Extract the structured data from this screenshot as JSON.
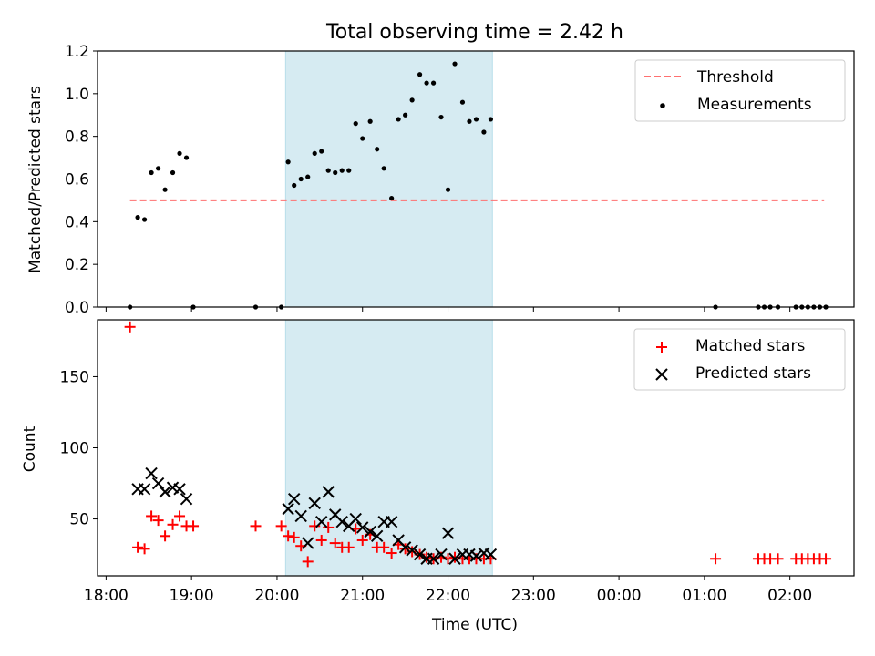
{
  "chart_data": [
    {
      "type": "scatter",
      "title": "Total observing time = 2.42 h",
      "xlabel": "",
      "ylabel": "Matched/Predicted stars",
      "x_unit": "hours since 18:00 UTC",
      "xlim": [
        17.9,
        26.75
      ],
      "ylim": [
        0,
        1.2
      ],
      "x_tick_labels": [
        "18:00",
        "19:00",
        "20:00",
        "21:00",
        "22:00",
        "23:00",
        "00:00",
        "01:00",
        "02:00"
      ],
      "y_ticks": [
        0.0,
        0.2,
        0.4,
        0.6,
        0.8,
        1.0,
        1.2
      ],
      "y_tick_labels": [
        "0.0",
        "0.2",
        "0.4",
        "0.6",
        "0.8",
        "1.0",
        "1.2"
      ],
      "shaded_span": [
        20.1,
        22.52
      ],
      "legend": {
        "position": "top-right",
        "entries": [
          "Threshold",
          "Measurements"
        ]
      },
      "threshold": {
        "name": "Threshold",
        "y": 0.5,
        "x_range": [
          18.28,
          26.4
        ],
        "color": "#ff7070"
      },
      "series": [
        {
          "name": "Measurements",
          "color": "#000000",
          "x": [
            18.28,
            18.37,
            18.45,
            18.53,
            18.61,
            18.69,
            18.78,
            18.86,
            18.94,
            19.02,
            19.75,
            20.05,
            20.13,
            20.2,
            20.28,
            20.36,
            20.44,
            20.52,
            20.6,
            20.68,
            20.76,
            20.84,
            20.92,
            21.0,
            21.09,
            21.17,
            21.25,
            21.34,
            21.42,
            21.5,
            21.58,
            21.67,
            21.75,
            21.83,
            21.92,
            22.0,
            22.08,
            22.17,
            22.25,
            22.33,
            22.42,
            22.5,
            25.13,
            25.63,
            25.7,
            25.77,
            25.86,
            26.07,
            26.14,
            26.21,
            26.28,
            26.35,
            26.42
          ],
          "y": [
            0.0,
            0.42,
            0.41,
            0.63,
            0.65,
            0.55,
            0.63,
            0.72,
            0.7,
            0.0,
            0.0,
            0.0,
            0.68,
            0.57,
            0.6,
            0.61,
            0.72,
            0.73,
            0.64,
            0.63,
            0.64,
            0.64,
            0.86,
            0.79,
            0.87,
            0.74,
            0.65,
            0.51,
            0.88,
            0.9,
            0.97,
            1.09,
            1.05,
            1.05,
            0.89,
            0.55,
            1.14,
            0.96,
            0.87,
            0.88,
            0.82,
            0.88,
            0.0,
            0.0,
            0.0,
            0.0,
            0.0,
            0.0,
            0.0,
            0.0,
            0.0,
            0.0,
            0.0
          ]
        }
      ]
    },
    {
      "type": "scatter",
      "title": "",
      "xlabel": "Time (UTC)",
      "ylabel": "Count",
      "x_unit": "hours since 18:00 UTC",
      "xlim": [
        17.9,
        26.75
      ],
      "ylim": [
        10,
        190
      ],
      "x_tick_labels": [
        "18:00",
        "19:00",
        "20:00",
        "21:00",
        "22:00",
        "23:00",
        "00:00",
        "01:00",
        "02:00"
      ],
      "y_ticks": [
        50,
        100,
        150
      ],
      "y_tick_labels": [
        "50",
        "100",
        "150"
      ],
      "shaded_span": [
        20.1,
        22.52
      ],
      "legend": {
        "position": "top-right",
        "entries": [
          "Matched stars",
          "Predicted stars"
        ]
      },
      "series": [
        {
          "name": "Matched stars",
          "color": "#ff0000",
          "x": [
            18.28,
            18.37,
            18.45,
            18.53,
            18.61,
            18.69,
            18.78,
            18.86,
            18.94,
            19.02,
            19.75,
            20.05,
            20.13,
            20.2,
            20.28,
            20.36,
            20.44,
            20.52,
            20.6,
            20.68,
            20.76,
            20.84,
            20.92,
            21.0,
            21.09,
            21.17,
            21.25,
            21.34,
            21.42,
            21.5,
            21.58,
            21.67,
            21.75,
            21.83,
            21.92,
            22.0,
            22.08,
            22.17,
            22.25,
            22.33,
            22.42,
            22.5,
            25.13,
            25.63,
            25.7,
            25.77,
            25.86,
            26.07,
            26.14,
            26.21,
            26.28,
            26.35,
            26.42
          ],
          "y": [
            185,
            30,
            29,
            52,
            49,
            38,
            46,
            52,
            45,
            45,
            45,
            45,
            38,
            37,
            31,
            20,
            45,
            35,
            44,
            33,
            30,
            30,
            43,
            35,
            39,
            30,
            30,
            26,
            32,
            29,
            27,
            25,
            23,
            22,
            23,
            22,
            23,
            22,
            22,
            22,
            22,
            22,
            22,
            22,
            22,
            22,
            22,
            22,
            22,
            22,
            22,
            22,
            22
          ]
        },
        {
          "name": "Predicted stars",
          "color": "#000000",
          "x": [
            18.37,
            18.45,
            18.53,
            18.61,
            18.69,
            18.78,
            18.86,
            18.94,
            20.13,
            20.2,
            20.28,
            20.36,
            20.44,
            20.52,
            20.6,
            20.68,
            20.76,
            20.84,
            20.92,
            21.0,
            21.09,
            21.17,
            21.25,
            21.34,
            21.42,
            21.5,
            21.58,
            21.67,
            21.75,
            21.83,
            21.92,
            22.0,
            22.08,
            22.17,
            22.25,
            22.33,
            22.42,
            22.5
          ],
          "y": [
            71,
            71,
            82,
            75,
            69,
            72,
            71,
            64,
            57,
            64,
            52,
            33,
            61,
            48,
            69,
            53,
            48,
            45,
            50,
            44,
            41,
            38,
            48,
            48,
            35,
            30,
            28,
            25,
            22,
            22,
            25,
            40,
            22,
            25,
            25,
            24,
            26,
            25
          ]
        }
      ]
    }
  ]
}
